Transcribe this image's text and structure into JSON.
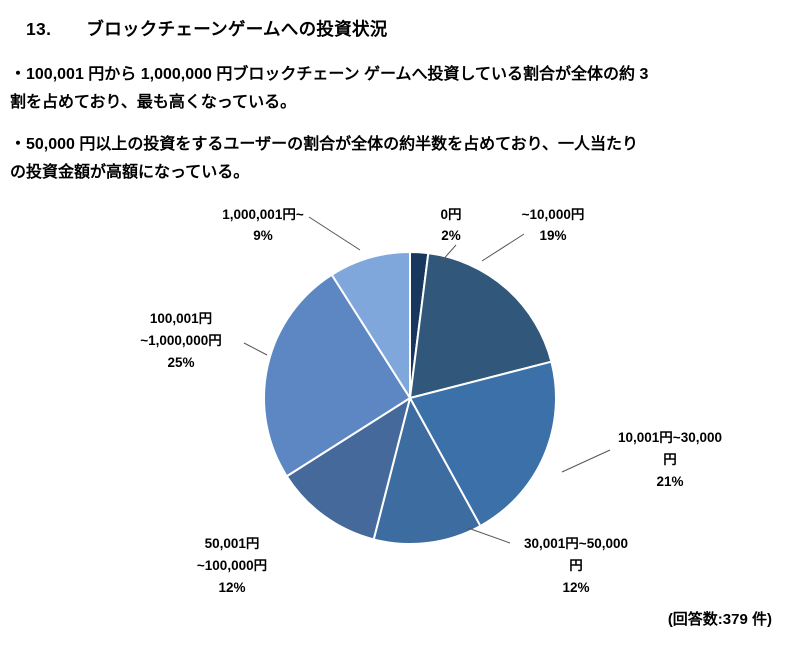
{
  "page": {
    "heading_number": "13.",
    "heading_title": "ブロックチェーンゲームへの投資状況",
    "paragraphs": [
      {
        "lines": [
          "・100,001 円から 1,000,000 円ブロックチェーン ゲームへ投資している割合が全体の約 3",
          "割を占めており、最も高くなっている。"
        ]
      },
      {
        "lines": [
          "・50,000 円以上の投資をするユーザーの割合が全体の約半数を占めており、一人当たり",
          "の投資金額が高額になっている。"
        ]
      }
    ],
    "footer_note": "(回答数:379 件)"
  },
  "chart_data": {
    "type": "pie",
    "title": "",
    "unit": "percent",
    "start_angle": "top",
    "direction": "clockwise",
    "legend": "none",
    "data_label_format": "category + percent, outside with leader lines",
    "categories": [
      "0円",
      "~10,000円",
      "10,001円~30,000円",
      "30,001円~50,000円",
      "50,001円~100,000円",
      "100,001円~1,000,000円",
      "1,000,001円~"
    ],
    "values": [
      2,
      19,
      21,
      12,
      12,
      25,
      9
    ],
    "response_count": 379,
    "segments": [
      {
        "label_lines": [
          "0円"
        ],
        "value": 2,
        "color": "#17375E"
      },
      {
        "label_lines": [
          "~10,000円"
        ],
        "value": 19,
        "color": "#31587A"
      },
      {
        "label_lines": [
          "10,001円~30,000",
          "円"
        ],
        "value": 21,
        "color": "#3C70A9"
      },
      {
        "label_lines": [
          "30,001円~50,000",
          "円"
        ],
        "value": 12,
        "color": "#3D6CA1"
      },
      {
        "label_lines": [
          "50,001円",
          "~100,000円"
        ],
        "value": 12,
        "color": "#45699B"
      },
      {
        "label_lines": [
          "100,001円",
          "~1,000,000円"
        ],
        "value": 25,
        "color": "#5C87C3"
      },
      {
        "label_lines": [
          "1,000,001円~"
        ],
        "value": 9,
        "color": "#7FA7DC"
      }
    ]
  }
}
